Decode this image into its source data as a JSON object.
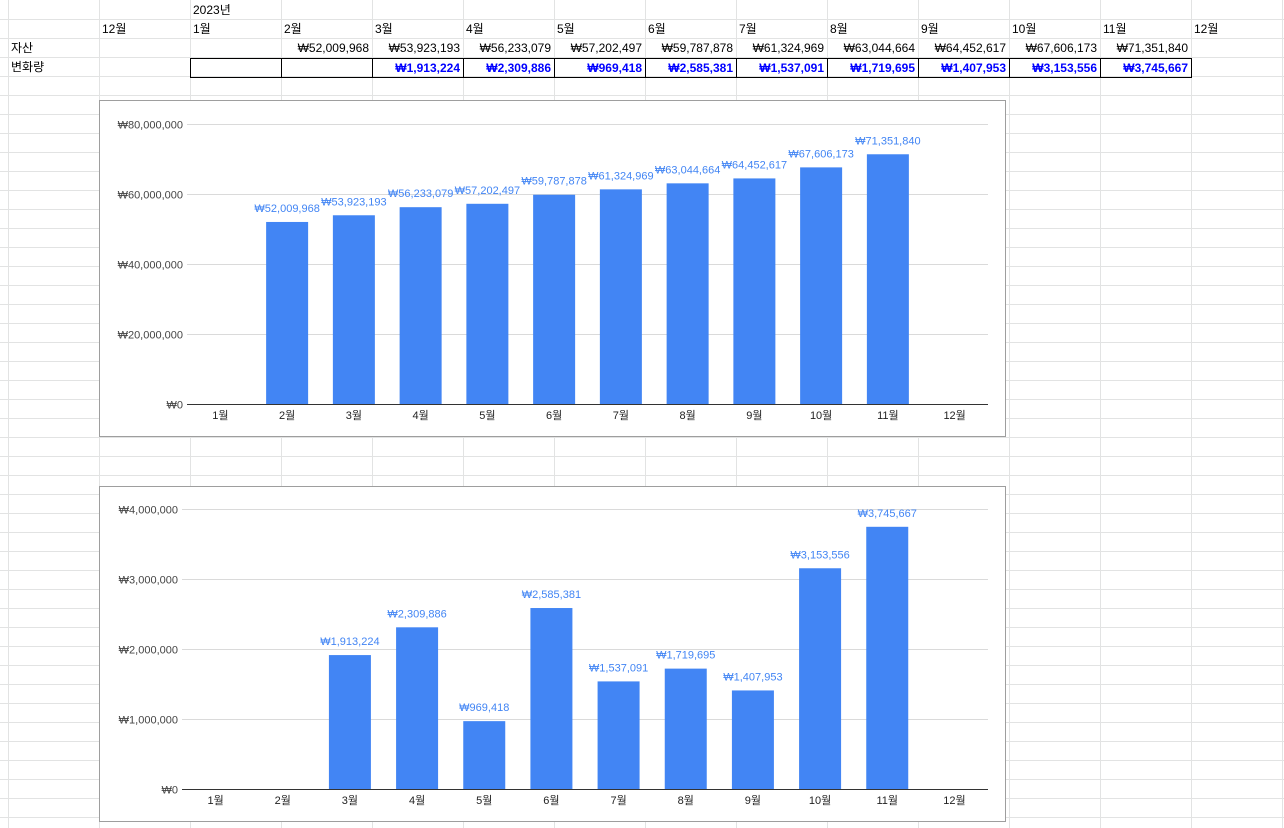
{
  "sheet": {
    "year_label": "2023년",
    "month_headers": [
      "12월",
      "1월",
      "2월",
      "3월",
      "4월",
      "5월",
      "6월",
      "7월",
      "8월",
      "9월",
      "10월",
      "11월",
      "12월"
    ],
    "rows": [
      {
        "label": "자산",
        "values": [
          "",
          "",
          "₩52,009,968",
          "₩53,923,193",
          "₩56,233,079",
          "₩57,202,497",
          "₩59,787,878",
          "₩61,324,969",
          "₩63,044,664",
          "₩64,452,617",
          "₩67,606,173",
          "₩71,351,840",
          ""
        ]
      },
      {
        "label": "변화량",
        "values": [
          "",
          "",
          "",
          "₩1,913,224",
          "₩2,309,886",
          "₩969,418",
          "₩2,585,381",
          "₩1,537,091",
          "₩1,719,695",
          "₩1,407,953",
          "₩3,153,556",
          "₩3,745,667",
          ""
        ]
      }
    ]
  },
  "colors": {
    "bar": "#4285f4",
    "gridline": "#dadada",
    "axis": "#333333",
    "highlight_text": "#0000ff"
  },
  "chart_data": [
    {
      "type": "bar",
      "title": "",
      "categories": [
        "1월",
        "2월",
        "3월",
        "4월",
        "5월",
        "6월",
        "7월",
        "8월",
        "9월",
        "10월",
        "11월",
        "12월"
      ],
      "values": [
        null,
        52009968,
        53923193,
        56233079,
        57202497,
        59787878,
        61324969,
        63044664,
        64452617,
        67606173,
        71351840,
        null
      ],
      "value_labels": [
        "",
        "₩52,009,968",
        "₩53,923,193",
        "₩56,233,079",
        "₩57,202,497",
        "₩59,787,878",
        "₩61,324,969",
        "₩63,044,664",
        "₩64,452,617",
        "₩67,606,173",
        "₩71,351,840",
        ""
      ],
      "ylim": [
        0,
        80000000
      ],
      "yticks": [
        0,
        20000000,
        40000000,
        60000000,
        80000000
      ],
      "ytick_labels": [
        "₩0",
        "₩20,000,000",
        "₩40,000,000",
        "₩60,000,000",
        "₩80,000,000"
      ],
      "grid": true,
      "legend": "none"
    },
    {
      "type": "bar",
      "title": "",
      "categories": [
        "1월",
        "2월",
        "3월",
        "4월",
        "5월",
        "6월",
        "7월",
        "8월",
        "9월",
        "10월",
        "11월",
        "12월"
      ],
      "values": [
        null,
        null,
        1913224,
        2309886,
        969418,
        2585381,
        1537091,
        1719695,
        1407953,
        3153556,
        3745667,
        null
      ],
      "value_labels": [
        "",
        "",
        "₩1,913,224",
        "₩2,309,886",
        "₩969,418",
        "₩2,585,381",
        "₩1,537,091",
        "₩1,719,695",
        "₩1,407,953",
        "₩3,153,556",
        "₩3,745,667",
        ""
      ],
      "ylim": [
        0,
        4000000
      ],
      "yticks": [
        0,
        1000000,
        2000000,
        3000000,
        4000000
      ],
      "ytick_labels": [
        "₩0",
        "₩1,000,000",
        "₩2,000,000",
        "₩3,000,000",
        "₩4,000,000"
      ],
      "grid": true,
      "legend": "none"
    }
  ]
}
